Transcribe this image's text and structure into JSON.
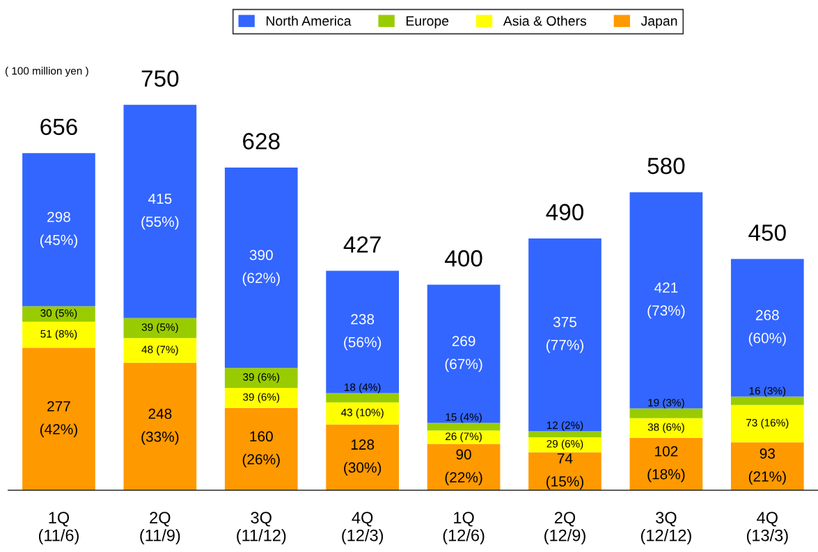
{
  "chart_data": {
    "type": "bar",
    "stacked": true,
    "legend": "top",
    "grid": false,
    "categories": [
      "1Q\n(11/6)",
      "2Q\n(11/9)",
      "3Q\n(11/12)",
      "4Q\n(12/3)",
      "1Q\n(12/6)",
      "2Q\n(12/9)",
      "3Q\n(12/12)",
      "4Q\n(13/3)"
    ],
    "series": [
      {
        "name": "Japan",
        "color": "#ff9900",
        "values": [
          277,
          248,
          160,
          128,
          90,
          74,
          102,
          93
        ],
        "value_labels": [
          "277\n(42%)",
          "248\n(33%)",
          "160\n(26%)",
          "128\n(30%)",
          "90\n(22%)",
          "74\n(15%)",
          "102\n(18%)",
          "93\n(21%)"
        ]
      },
      {
        "name": "Asia & Others",
        "color": "#ffff00",
        "values": [
          51,
          48,
          39,
          43,
          26,
          29,
          38,
          73
        ],
        "value_labels": [
          "51 (8%)",
          "48 (7%)",
          "39 (6%)",
          "43 (10%)",
          "26 (7%)",
          "29 (6%)",
          "38 (6%)",
          "73 (16%)"
        ]
      },
      {
        "name": "Europe",
        "color": "#99cc00",
        "values": [
          30,
          39,
          39,
          18,
          15,
          12,
          19,
          16
        ],
        "value_labels": [
          "30 (5%)",
          "39 (5%)",
          "39 (6%)",
          "18 (4%)",
          "15 (4%)",
          "12 (2%)",
          "19 (3%)",
          "16 (3%)"
        ]
      },
      {
        "name": "North America",
        "color": "#3366ff",
        "values": [
          298,
          415,
          390,
          238,
          269,
          375,
          421,
          268
        ],
        "value_labels": [
          "298\n(45%)",
          "415\n(55%)",
          "390\n(62%)",
          "238\n(56%)",
          "269\n(67%)",
          "375\n(77%)",
          "421\n(73%)",
          "268\n(60%)"
        ]
      }
    ],
    "totals": [
      "656",
      "750",
      "628",
      "427",
      "400",
      "490",
      "580",
      "450"
    ],
    "annotations": [
      "( 100 million yen )"
    ]
  }
}
